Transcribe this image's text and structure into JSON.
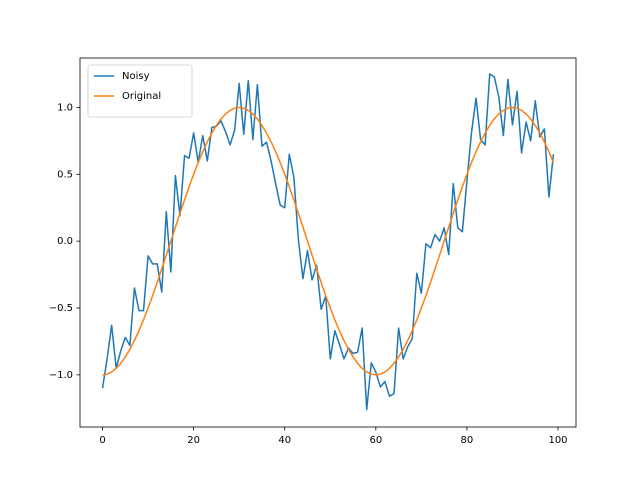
{
  "chart_data": {
    "type": "line",
    "x": [
      0,
      1,
      2,
      3,
      4,
      5,
      6,
      7,
      8,
      9,
      10,
      11,
      12,
      13,
      14,
      15,
      16,
      17,
      18,
      19,
      20,
      21,
      22,
      23,
      24,
      25,
      26,
      27,
      28,
      29,
      30,
      31,
      32,
      33,
      34,
      35,
      36,
      37,
      38,
      39,
      40,
      41,
      42,
      43,
      44,
      45,
      46,
      47,
      48,
      49,
      50,
      51,
      52,
      53,
      54,
      55,
      56,
      57,
      58,
      59,
      60,
      61,
      62,
      63,
      64,
      65,
      66,
      67,
      68,
      69,
      70,
      71,
      72,
      73,
      74,
      75,
      76,
      77,
      78,
      79,
      80,
      81,
      82,
      83,
      84,
      85,
      86,
      87,
      88,
      89,
      90,
      91,
      92,
      93,
      94,
      95,
      96,
      97,
      98,
      99
    ],
    "series": [
      {
        "name": "Noisy",
        "color": "#1f77b4",
        "values": [
          -1.1,
          -0.88,
          -0.63,
          -0.95,
          -0.82,
          -0.72,
          -0.78,
          -0.35,
          -0.52,
          -0.52,
          -0.11,
          -0.17,
          -0.17,
          -0.38,
          0.22,
          -0.23,
          0.49,
          0.19,
          0.64,
          0.62,
          0.81,
          0.59,
          0.79,
          0.6,
          0.85,
          0.86,
          0.9,
          0.82,
          0.72,
          0.83,
          1.18,
          0.8,
          1.2,
          0.76,
          1.17,
          0.71,
          0.74,
          0.6,
          0.43,
          0.27,
          0.25,
          0.65,
          0.48,
          0.01,
          -0.28,
          -0.07,
          -0.29,
          -0.18,
          -0.51,
          -0.41,
          -0.88,
          -0.67,
          -0.77,
          -0.88,
          -0.8,
          -0.84,
          -0.83,
          -0.65,
          -1.26,
          -0.91,
          -0.98,
          -1.09,
          -1.05,
          -1.16,
          -1.14,
          -0.65,
          -0.88,
          -0.79,
          -0.73,
          -0.24,
          -0.39,
          -0.02,
          -0.05,
          0.05,
          0.0,
          0.1,
          -0.1,
          0.43,
          0.1,
          0.07,
          0.45,
          0.81,
          1.07,
          0.76,
          0.72,
          1.25,
          1.23,
          1.08,
          0.79,
          1.21,
          0.87,
          1.12,
          0.66,
          0.89,
          0.75,
          1.05,
          0.78,
          0.84,
          0.33,
          0.65
        ]
      },
      {
        "name": "Original",
        "color": "#ff7f0e",
        "values": [
          -1,
          -0.995,
          -0.978,
          -0.951,
          -0.914,
          -0.866,
          -0.809,
          -0.743,
          -0.669,
          -0.588,
          -0.5,
          -0.407,
          -0.309,
          -0.208,
          -0.105,
          0,
          0.105,
          0.208,
          0.309,
          0.407,
          0.5,
          0.588,
          0.669,
          0.743,
          0.809,
          0.866,
          0.914,
          0.951,
          0.978,
          0.995,
          1,
          0.995,
          0.978,
          0.951,
          0.914,
          0.866,
          0.809,
          0.743,
          0.669,
          0.588,
          0.5,
          0.407,
          0.309,
          0.208,
          0.105,
          0,
          -0.105,
          -0.208,
          -0.309,
          -0.407,
          -0.5,
          -0.588,
          -0.669,
          -0.743,
          -0.809,
          -0.866,
          -0.914,
          -0.951,
          -0.978,
          -0.995,
          -1,
          -0.995,
          -0.978,
          -0.951,
          -0.914,
          -0.866,
          -0.809,
          -0.743,
          -0.669,
          -0.588,
          -0.5,
          -0.407,
          -0.309,
          -0.208,
          -0.105,
          0,
          0.105,
          0.208,
          0.309,
          0.407,
          0.5,
          0.588,
          0.669,
          0.743,
          0.809,
          0.866,
          0.914,
          0.951,
          0.978,
          0.995,
          1,
          0.995,
          0.978,
          0.951,
          0.914,
          0.866,
          0.809,
          0.743,
          0.669,
          0.588
        ]
      }
    ],
    "xlim": [
      -4.95,
      103.95
    ],
    "xticks": [
      0,
      20,
      40,
      60,
      80,
      100
    ],
    "ylim": [
      -1.39,
      1.37
    ],
    "yticks": [
      {
        "value": -1,
        "label": "−1.0"
      },
      {
        "value": -0.5,
        "label": "−0.5"
      },
      {
        "value": 0,
        "label": "0.0"
      },
      {
        "value": 0.5,
        "label": "0.5"
      },
      {
        "value": 1,
        "label": "1.0"
      }
    ],
    "legend": "upper left",
    "grid": false
  }
}
